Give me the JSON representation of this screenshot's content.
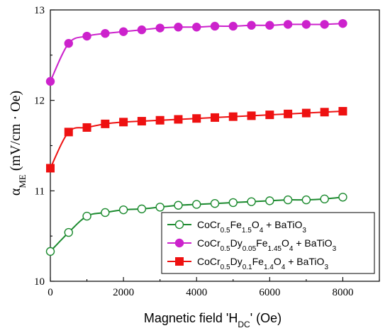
{
  "chart_data": {
    "type": "line",
    "xlabel": "Magnetic field 'H",
    "xlabel_sub": "DC",
    "xlabel_tail": "' (Oe)",
    "ylabel_alpha": "α",
    "ylabel_sub": "ME",
    "ylabel_tail": " (mV/cm · Oe)",
    "xlim": [
      0,
      9000
    ],
    "ylim": [
      10,
      13
    ],
    "x_ticks": [
      0,
      2000,
      4000,
      6000,
      8000
    ],
    "x_tick_labels": [
      "0",
      "2000",
      "4000",
      "6000",
      "8000"
    ],
    "y_ticks": [
      10,
      11,
      12,
      13
    ],
    "y_tick_labels": [
      "10",
      "11",
      "12",
      "13"
    ],
    "legend_position": "bottom-right",
    "series": [
      {
        "legend_parts": [
          [
            "CoCr",
            false
          ],
          [
            "0.5",
            true
          ],
          [
            "Fe",
            false
          ],
          [
            "1.5",
            true
          ],
          [
            "O",
            false
          ],
          [
            "4",
            true
          ],
          [
            " + BaTiO",
            false
          ],
          [
            "3",
            true
          ]
        ],
        "color": "#1b8a2e",
        "marker": "circle-open",
        "x": [
          0,
          500,
          1000,
          1500,
          2000,
          2500,
          3000,
          3500,
          4000,
          4500,
          5000,
          5500,
          6000,
          6500,
          7000,
          7500,
          8000
        ],
        "y": [
          10.33,
          10.54,
          10.72,
          10.76,
          10.79,
          10.8,
          10.82,
          10.84,
          10.85,
          10.86,
          10.87,
          10.88,
          10.89,
          10.9,
          10.9,
          10.91,
          10.93
        ]
      },
      {
        "legend_parts": [
          [
            "CoCr",
            false
          ],
          [
            "0.5",
            true
          ],
          [
            "Dy",
            false
          ],
          [
            "0.05",
            true
          ],
          [
            "Fe",
            false
          ],
          [
            "1.45",
            true
          ],
          [
            "O",
            false
          ],
          [
            "4",
            true
          ],
          [
            " + BaTiO",
            false
          ],
          [
            "3",
            true
          ]
        ],
        "color": "#cc22cc",
        "marker": "circle-filled",
        "x": [
          0,
          500,
          1000,
          1500,
          2000,
          2500,
          3000,
          3500,
          4000,
          4500,
          5000,
          5500,
          6000,
          6500,
          7000,
          7500,
          8000
        ],
        "y": [
          12.21,
          12.63,
          12.71,
          12.74,
          12.76,
          12.78,
          12.8,
          12.81,
          12.81,
          12.82,
          12.82,
          12.83,
          12.83,
          12.84,
          12.84,
          12.84,
          12.85
        ]
      },
      {
        "legend_parts": [
          [
            "CoCr",
            false
          ],
          [
            "0.5",
            true
          ],
          [
            "Dy",
            false
          ],
          [
            "0.1",
            true
          ],
          [
            "Fe",
            false
          ],
          [
            "1.4",
            true
          ],
          [
            "O",
            false
          ],
          [
            "4",
            true
          ],
          [
            " + BaTiO",
            false
          ],
          [
            "3",
            true
          ]
        ],
        "color": "#ee1111",
        "marker": "square-filled",
        "x": [
          0,
          500,
          1000,
          1500,
          2000,
          2500,
          3000,
          3500,
          4000,
          4500,
          5000,
          5500,
          6000,
          6500,
          7000,
          7500,
          8000
        ],
        "y": [
          11.25,
          11.65,
          11.7,
          11.74,
          11.76,
          11.77,
          11.78,
          11.79,
          11.8,
          11.81,
          11.82,
          11.83,
          11.84,
          11.85,
          11.86,
          11.87,
          11.88
        ]
      }
    ]
  }
}
